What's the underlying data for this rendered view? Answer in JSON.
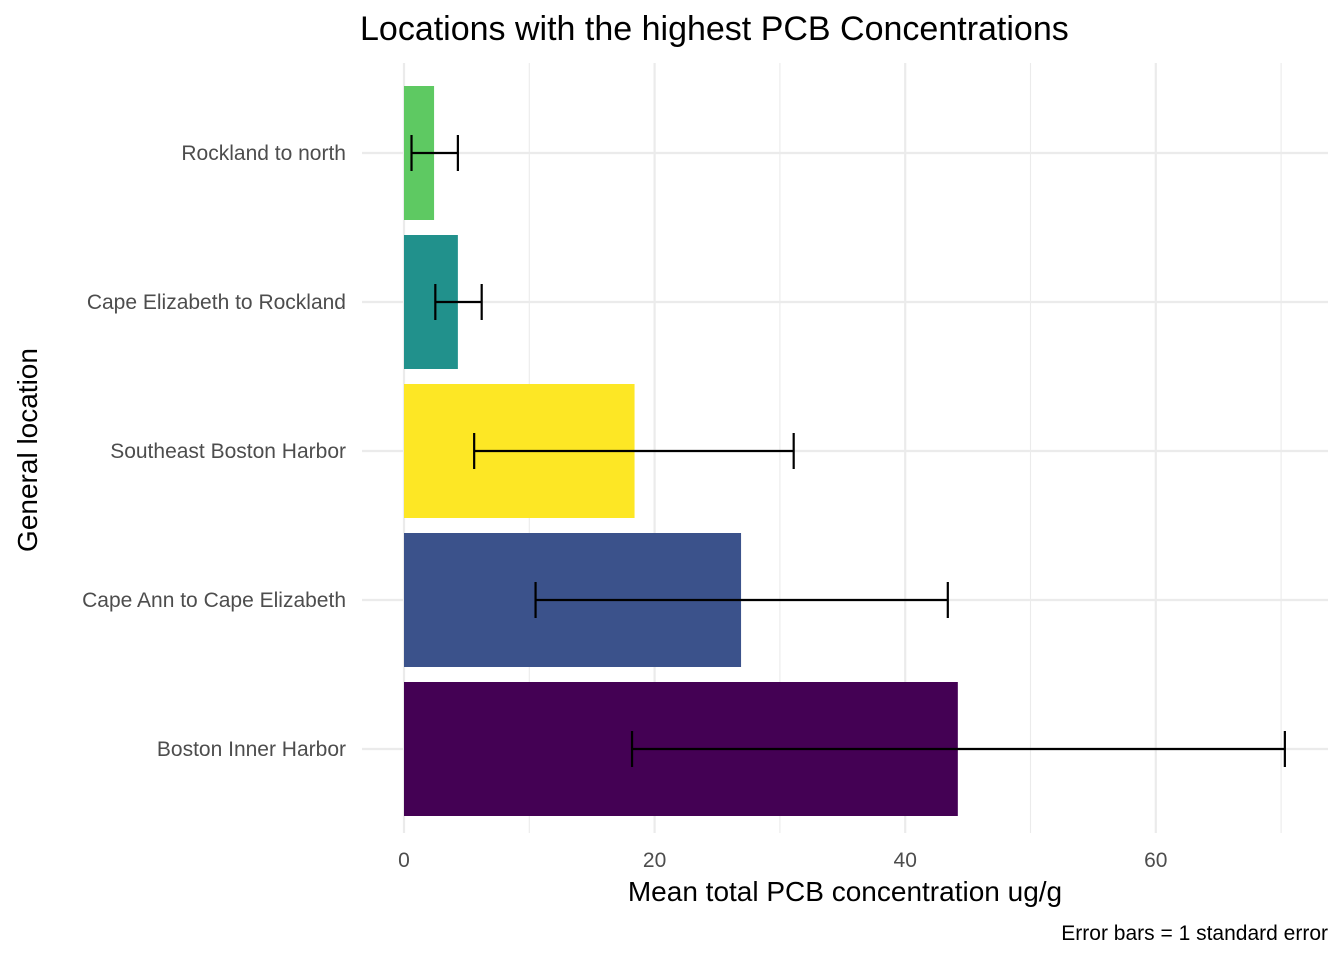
{
  "chart_data": {
    "type": "bar",
    "orientation": "horizontal",
    "title": "Locations with the highest PCB Concentrations",
    "xlabel": "Mean total PCB concentration ug/g",
    "ylabel": "General location",
    "caption": "Error bars = 1 standard error",
    "xlim": [
      0,
      70
    ],
    "x_ticks": [
      0,
      20,
      40,
      60
    ],
    "grid": true,
    "categories": [
      "Rockland to north",
      "Cape Elizabeth to Rockland",
      "Southeast Boston Harbor",
      "Cape Ann to Cape Elizabeth",
      "Boston Inner Harbor"
    ],
    "values": [
      2.4,
      4.3,
      18.4,
      26.9,
      44.2
    ],
    "error_low": [
      0.6,
      2.5,
      5.6,
      10.5,
      18.2
    ],
    "error_high": [
      4.3,
      6.2,
      31.1,
      43.4,
      70.3
    ],
    "colors": [
      "#5ec962",
      "#21918c",
      "#fde725",
      "#3b528b",
      "#440154"
    ]
  }
}
